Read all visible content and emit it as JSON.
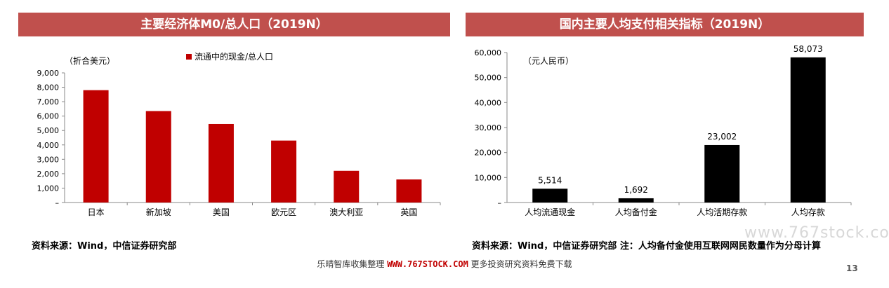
{
  "left": {
    "title": "主要经济体M0/总人口（2019N）",
    "unit": "（折合美元）",
    "legend": "流通中的现金/总人口",
    "source": "资料来源：Wind，中信证券研究部"
  },
  "right": {
    "title": "国内主要人均支付相关指标（2019N）",
    "unit": "（元人民币）",
    "source": "资料来源：Wind，中信证券研究部 注：人均备付金使用互联网网民数量作为分母计算"
  },
  "footer": {
    "prefix": "乐晴智库收集整理 ",
    "brand": "WWW.767STOCK.COM",
    "suffix": " 更多投资研究资料免费下载",
    "page": "13",
    "watermark": "www.767stock.com"
  },
  "chart_data": [
    {
      "type": "bar",
      "title": "主要经济体M0/总人口（2019N）",
      "categories": [
        "日本",
        "新加坡",
        "美国",
        "欧元区",
        "澳大利亚",
        "英国"
      ],
      "series": [
        {
          "name": "流通中的现金/总人口",
          "values": [
            7800,
            6350,
            5450,
            4300,
            2200,
            1600
          ]
        }
      ],
      "ylim": [
        0,
        9000
      ],
      "yticks": [
        "–",
        "1,000",
        "2,000",
        "3,000",
        "4,000",
        "5,000",
        "6,000",
        "7,000",
        "8,000",
        "9,000"
      ],
      "color": "#C00000",
      "grid": false,
      "legend_position": "top-center"
    },
    {
      "type": "bar",
      "title": "国内主要人均支付相关指标（2019N）",
      "categories": [
        "人均流通现金",
        "人均备付金",
        "人均活期存款",
        "人均存款"
      ],
      "values": [
        5514,
        1692,
        23002,
        58073
      ],
      "labels": [
        "5,514",
        "1,692",
        "23,002",
        "58,073"
      ],
      "ylim": [
        0,
        60000
      ],
      "yticks": [
        "–",
        "10,000",
        "20,000",
        "30,000",
        "40,000",
        "50,000",
        "60,000"
      ],
      "color": "#000000",
      "grid": false
    }
  ]
}
